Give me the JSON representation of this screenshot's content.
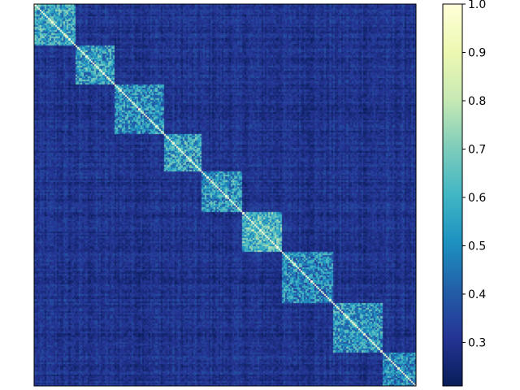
{
  "chart_data": {
    "type": "heatmap",
    "title": "",
    "xlabel": "",
    "ylabel": "",
    "colormap": "YlGnBu_r",
    "matrix_size": 224,
    "value_range": [
      0.21,
      1.0
    ],
    "diagonal_value": 1.0,
    "blocks": [
      {
        "start": 0,
        "end": 24,
        "within_mean": 0.56
      },
      {
        "start": 24,
        "end": 47,
        "within_mean": 0.54
      },
      {
        "start": 47,
        "end": 76,
        "within_mean": 0.52
      },
      {
        "start": 76,
        "end": 98,
        "within_mean": 0.55
      },
      {
        "start": 98,
        "end": 122,
        "within_mean": 0.53
      },
      {
        "start": 122,
        "end": 145,
        "within_mean": 0.62
      },
      {
        "start": 145,
        "end": 175,
        "within_mean": 0.5
      },
      {
        "start": 175,
        "end": 204,
        "within_mean": 0.53
      },
      {
        "start": 204,
        "end": 224,
        "within_mean": 0.5
      }
    ],
    "between_block_mean": 0.3,
    "colorbar": {
      "min": 0.21,
      "max": 1.0,
      "ticks": [
        0.3,
        0.4,
        0.5,
        0.6,
        0.7,
        0.8,
        0.9,
        1.0
      ],
      "tick_labels": [
        "0.3",
        "0.4",
        "0.5",
        "0.6",
        "0.7",
        "0.8",
        "0.9",
        "1.0"
      ]
    }
  }
}
